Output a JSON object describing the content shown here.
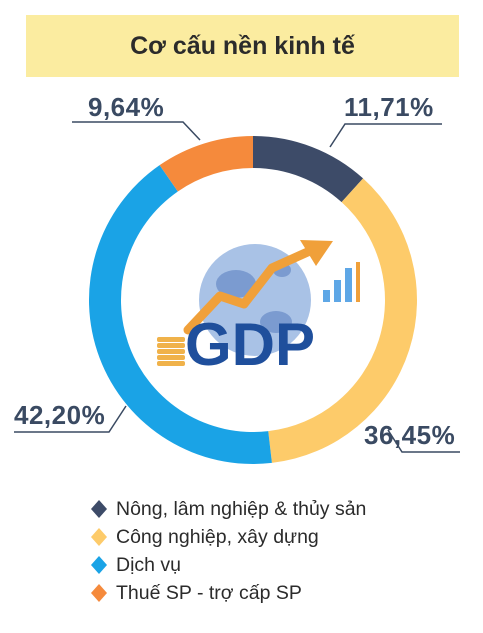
{
  "chart_data": {
    "type": "pie",
    "title": "Cơ cấu nền kinh tế",
    "center_text": "GDP",
    "categories": [
      "Nông, lâm nghiệp & thủy sản",
      "Công nghiệp, xây dựng",
      "Dịch vụ",
      "Thuế SP - trợ cấp SP"
    ],
    "values": [
      11.71,
      36.45,
      42.2,
      9.64
    ],
    "value_labels": [
      "11,71%",
      "36,45%",
      "42,20%",
      "9,64%"
    ],
    "colors": [
      "#3d4b68",
      "#fdcb6a",
      "#1aa3e6",
      "#f58a3c"
    ],
    "legend_position": "bottom"
  }
}
